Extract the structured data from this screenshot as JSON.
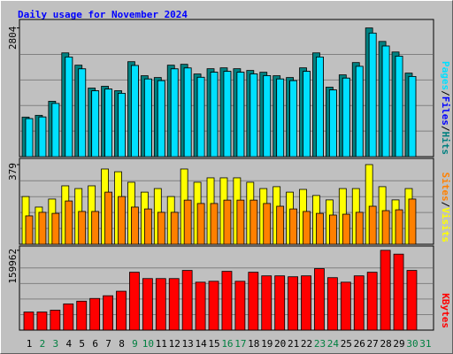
{
  "chart_data": [
    {
      "type": "bar",
      "title": "Daily usage for November 2024",
      "legend_separator": "/",
      "ylim": [
        0,
        2950
      ],
      "yticks": [
        2804
      ],
      "series": [
        {
          "name": "Hits",
          "color": "#008080",
          "values": [
            862,
            900,
            1207,
            2261,
            1993,
            1494,
            1533,
            1437,
            2069,
            1763,
            1724,
            1993,
            2012,
            1801,
            1916,
            1935,
            1916,
            1878,
            1839,
            1763,
            1724,
            1935,
            2261,
            1514,
            1782,
            2050,
            2804,
            2510,
            2280,
            1820,
            null
          ]
        },
        {
          "name": "Files",
          "color": "#0000ff",
          "values": [
            828,
            864,
            1159,
            2171,
            1913,
            1434,
            1472,
            1380,
            1986,
            1692,
            1655,
            1913,
            1932,
            1729,
            1839,
            1858,
            1839,
            1803,
            1765,
            1692,
            1655,
            1858,
            2171,
            1453,
            1711,
            1968,
            2692,
            2410,
            2189,
            1747,
            null
          ]
        },
        {
          "name": "Pages",
          "color": "#00e0ff",
          "values": [
            828,
            864,
            1159,
            2171,
            1913,
            1434,
            1472,
            1380,
            1986,
            1692,
            1655,
            1913,
            1932,
            1729,
            1839,
            1858,
            1839,
            1803,
            1765,
            1692,
            1655,
            1858,
            2171,
            1453,
            1711,
            1968,
            2692,
            2410,
            2189,
            1747,
            null
          ]
        }
      ]
    },
    {
      "type": "bar",
      "legend_separator": "/",
      "ylim": [
        0,
        400
      ],
      "yticks": [
        379
      ],
      "series": [
        {
          "name": "Visits",
          "color": "#ffff00",
          "values": [
            227,
            177,
            215,
            278,
            265,
            278,
            358,
            345,
            295,
            248,
            265,
            227,
            358,
            295,
            316,
            316,
            316,
            295,
            265,
            274,
            248,
            261,
            232,
            211,
            265,
            265,
            379,
            274,
            211,
            265,
            null
          ]
        },
        {
          "name": "Sites",
          "color": "#ff8000",
          "values": [
            135,
            152,
            147,
            206,
            156,
            156,
            248,
            227,
            177,
            168,
            152,
            152,
            210,
            194,
            194,
            210,
            210,
            210,
            194,
            181,
            168,
            156,
            147,
            139,
            143,
            152,
            181,
            160,
            164,
            215,
            null
          ]
        }
      ]
    },
    {
      "type": "bar",
      "ylim": [
        0,
        165000
      ],
      "yticks": [
        159962
      ],
      "categories": [
        "1",
        "2",
        "3",
        "4",
        "5",
        "6",
        "7",
        "8",
        "9",
        "10",
        "11",
        "12",
        "13",
        "14",
        "15",
        "16",
        "17",
        "18",
        "19",
        "20",
        "21",
        "22",
        "23",
        "24",
        "25",
        "26",
        "27",
        "28",
        "29",
        "30",
        "31"
      ],
      "category_colors": [
        "#000000",
        "#008040",
        "#008040",
        "#000000",
        "#000000",
        "#000000",
        "#000000",
        "#000000",
        "#008040",
        "#008040",
        "#000000",
        "#000000",
        "#000000",
        "#000000",
        "#000000",
        "#008040",
        "#008040",
        "#000000",
        "#000000",
        "#000000",
        "#000000",
        "#000000",
        "#008040",
        "#008040",
        "#000000",
        "#000000",
        "#000000",
        "#000000",
        "#000000",
        "#008040",
        "#008040"
      ],
      "series": [
        {
          "name": "KBytes",
          "color": "#ff0000",
          "values": [
            36260,
            36260,
            39886,
            52577,
            58016,
            63455,
            68894,
            77959,
            116032,
            103341,
            103341,
            103341,
            119658,
            96089,
            97902,
            117845,
            97902,
            116032,
            108780,
            108780,
            106967,
            108780,
            123284,
            105154,
            96089,
            108780,
            116032,
            159962,
            152292,
            119658,
            null
          ]
        }
      ]
    }
  ]
}
